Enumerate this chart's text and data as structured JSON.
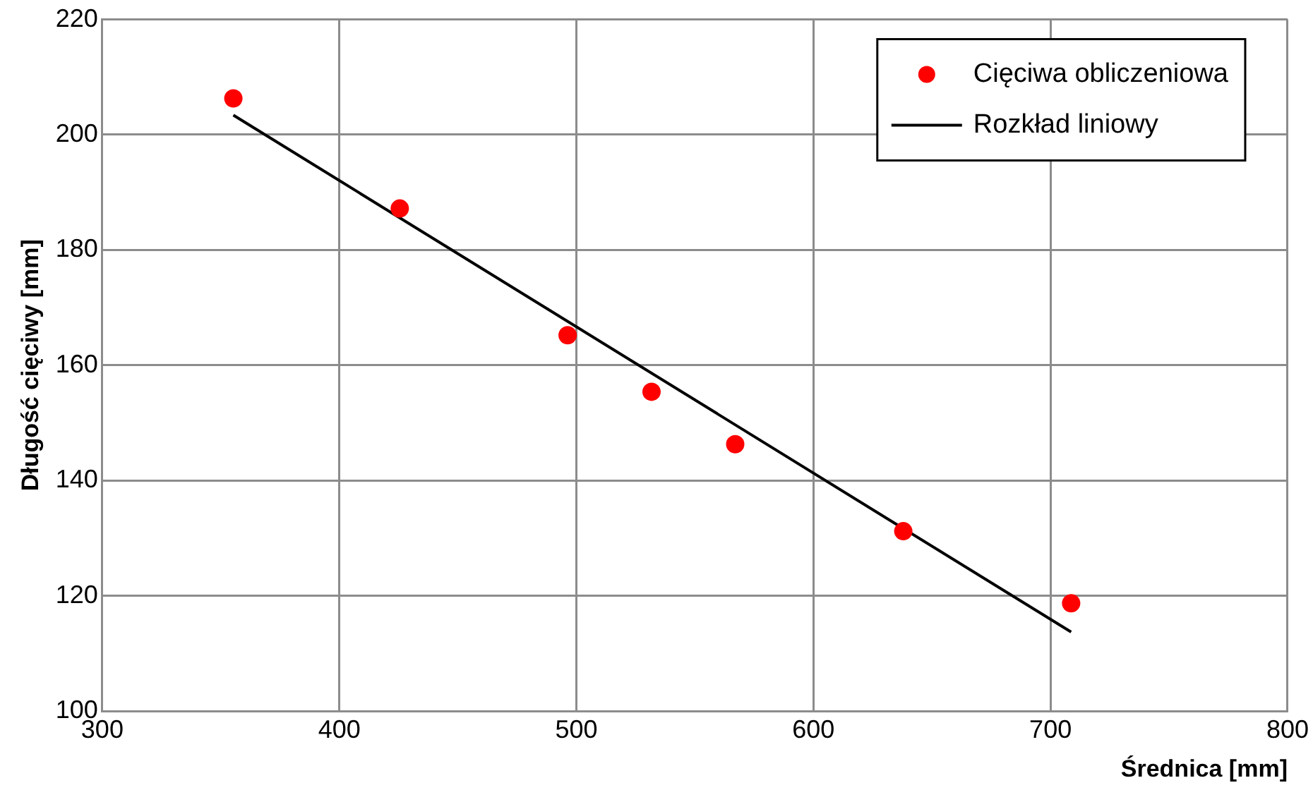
{
  "chart_data": {
    "type": "scatter",
    "xlabel": "Średnica [mm]",
    "ylabel": "Długość cięciwy [mm]",
    "xlim": [
      300,
      800
    ],
    "xticks": [
      300,
      400,
      500,
      600,
      700,
      800
    ],
    "ylim": [
      100,
      220
    ],
    "yticks": [
      100,
      120,
      140,
      160,
      180,
      200,
      220
    ],
    "grid": true,
    "legend": "top right",
    "marker": "circle",
    "series": [
      {
        "name": "Cięciwa obliczeniowa",
        "type": "scatter",
        "color": "#ff0000",
        "x": [
          355.3,
          425.5,
          496.3,
          531.7,
          567,
          637.9,
          708.7
        ],
        "values": [
          206.3,
          187.2,
          165.2,
          155.4,
          146.3,
          131.2,
          118.7
        ]
      },
      {
        "name": "Rozkład liniowy",
        "type": "line",
        "color": "#000000",
        "line_style": "solid",
        "marker": "none",
        "x": [
          355.3,
          708.7
        ],
        "values": [
          203.4,
          113.7
        ]
      }
    ]
  }
}
